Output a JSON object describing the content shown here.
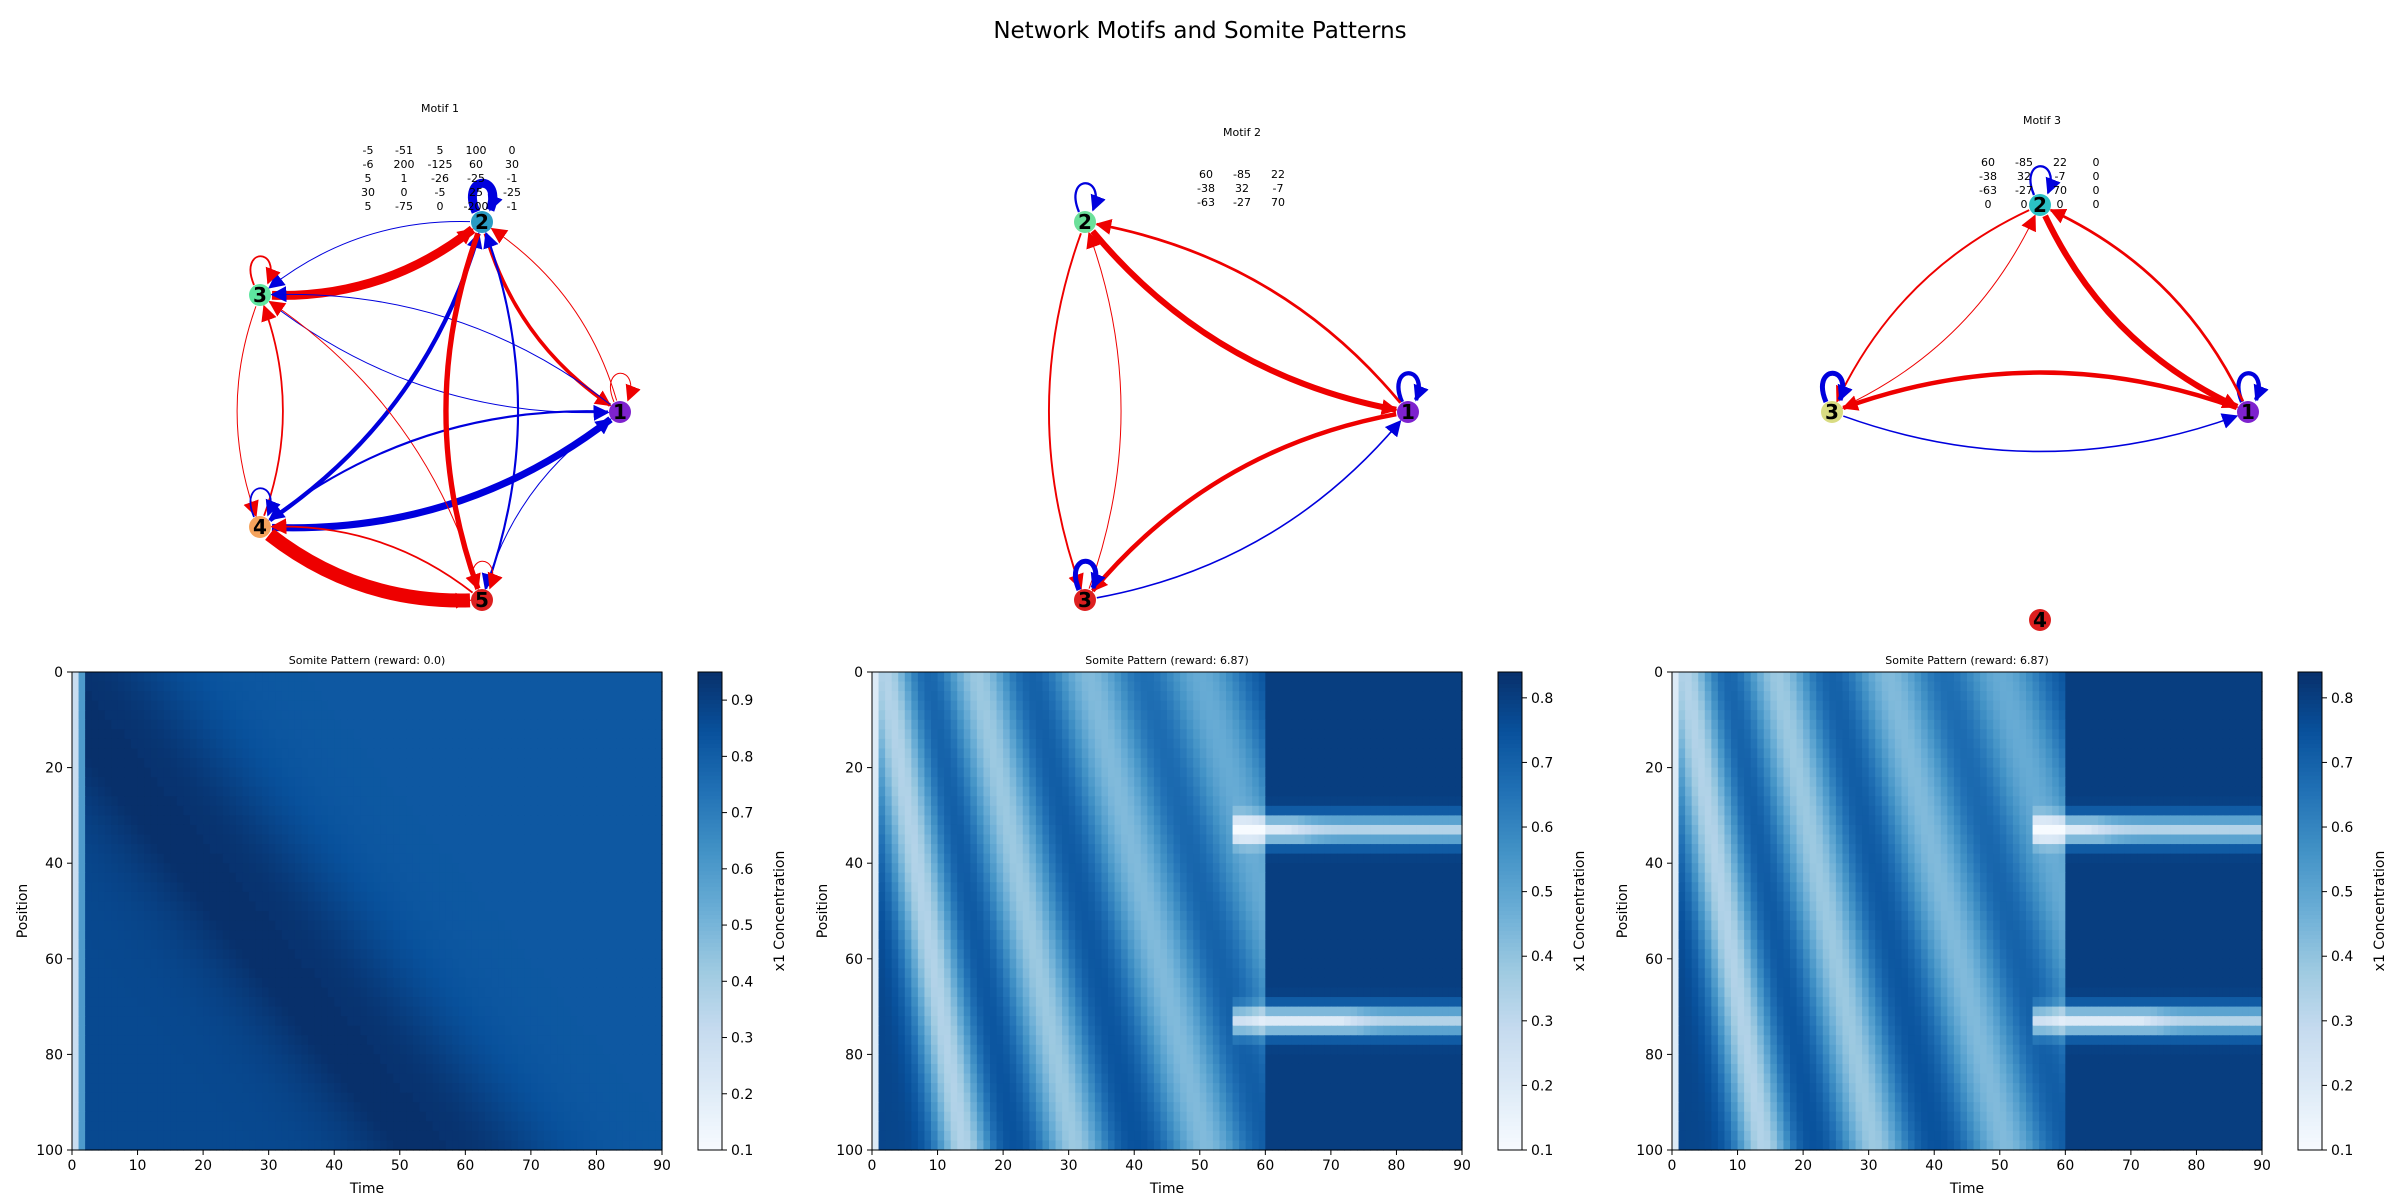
{
  "figure": {
    "title": "Network Motifs and Somite Patterns"
  },
  "colors": {
    "activation": "#0000dd",
    "repression": "#ee0000"
  },
  "colormap": [
    "#f7fbff",
    "#deebf7",
    "#c6dbef",
    "#9ecae1",
    "#6baed6",
    "#4292c6",
    "#2171b5",
    "#08519c",
    "#08306b"
  ],
  "motifs": [
    {
      "title": "Motif 1",
      "matrix": [
        [
          "-5",
          "-51",
          "5",
          "100",
          "0"
        ],
        [
          "-6",
          "200",
          "-125",
          "60",
          "30"
        ],
        [
          "5",
          "1",
          "-26",
          "-25",
          "-1"
        ],
        [
          "30",
          "0",
          "-5",
          "25",
          "-25"
        ],
        [
          "5",
          "-75",
          "0",
          "-200",
          "-1"
        ]
      ],
      "nodes": [
        {
          "label": "1",
          "color": "#7e22ce"
        },
        {
          "label": "2",
          "color": "#2a9bc3"
        },
        {
          "label": "3",
          "color": "#5ee6a0"
        },
        {
          "label": "4",
          "color": "#f5a35c"
        },
        {
          "label": "5",
          "color": "#dd1f1f"
        }
      ]
    },
    {
      "title": "Motif 2",
      "matrix": [
        [
          "60",
          "-85",
          "22"
        ],
        [
          "-38",
          "32",
          "-7"
        ],
        [
          "-63",
          "-27",
          "70"
        ]
      ],
      "nodes": [
        {
          "label": "1",
          "color": "#7e22ce"
        },
        {
          "label": "2",
          "color": "#6be09a"
        },
        {
          "label": "3",
          "color": "#dd1f1f"
        }
      ]
    },
    {
      "title": "Motif 3",
      "matrix": [
        [
          "60",
          "-85",
          "22",
          "0"
        ],
        [
          "-38",
          "32",
          "-7",
          "0"
        ],
        [
          "-63",
          "-27",
          "70",
          "0"
        ],
        [
          "0",
          "0",
          "0",
          "0"
        ]
      ],
      "nodes": [
        {
          "label": "1",
          "color": "#7e22ce"
        },
        {
          "label": "2",
          "color": "#2bc0c4"
        },
        {
          "label": "3",
          "color": "#d9dc82"
        },
        {
          "label": "4",
          "color": "#dd1f1f"
        }
      ]
    }
  ],
  "chart_data": [
    {
      "type": "heatmap",
      "title": "Somite Pattern (reward: 0.0)",
      "xlabel": "Time",
      "ylabel": "Position",
      "xlim": [
        0,
        90
      ],
      "ylim": [
        100,
        0
      ],
      "xticks": [
        0,
        10,
        20,
        30,
        40,
        50,
        60,
        70,
        80,
        90
      ],
      "yticks": [
        0,
        20,
        40,
        60,
        80,
        100
      ],
      "colorbar": {
        "label": "x1 Concentration",
        "ticks": [
          0.1,
          0.2,
          0.3,
          0.4,
          0.5,
          0.6,
          0.7,
          0.8,
          0.9
        ],
        "range": [
          0.1,
          0.95
        ]
      },
      "pattern": "travelling_wave"
    },
    {
      "type": "heatmap",
      "title": "Somite Pattern (reward: 6.87)",
      "xlabel": "Time",
      "ylabel": "Position",
      "xlim": [
        0,
        90
      ],
      "ylim": [
        100,
        0
      ],
      "xticks": [
        0,
        10,
        20,
        30,
        40,
        50,
        60,
        70,
        80,
        90
      ],
      "yticks": [
        0,
        20,
        40,
        60,
        80,
        100
      ],
      "colorbar": {
        "label": "x1 Concentration",
        "ticks": [
          0.1,
          0.2,
          0.3,
          0.4,
          0.5,
          0.6,
          0.7,
          0.8
        ],
        "range": [
          0.1,
          0.84
        ]
      },
      "pattern": "somite_segments"
    },
    {
      "type": "heatmap",
      "title": "Somite Pattern (reward: 6.87)",
      "xlabel": "Time",
      "ylabel": "Position",
      "xlim": [
        0,
        90
      ],
      "ylim": [
        100,
        0
      ],
      "xticks": [
        0,
        10,
        20,
        30,
        40,
        50,
        60,
        70,
        80,
        90
      ],
      "yticks": [
        0,
        20,
        40,
        60,
        80,
        100
      ],
      "colorbar": {
        "label": "x1 Concentration",
        "ticks": [
          0.1,
          0.2,
          0.3,
          0.4,
          0.5,
          0.6,
          0.7,
          0.8
        ],
        "range": [
          0.1,
          0.84
        ]
      },
      "pattern": "somite_segments"
    }
  ]
}
